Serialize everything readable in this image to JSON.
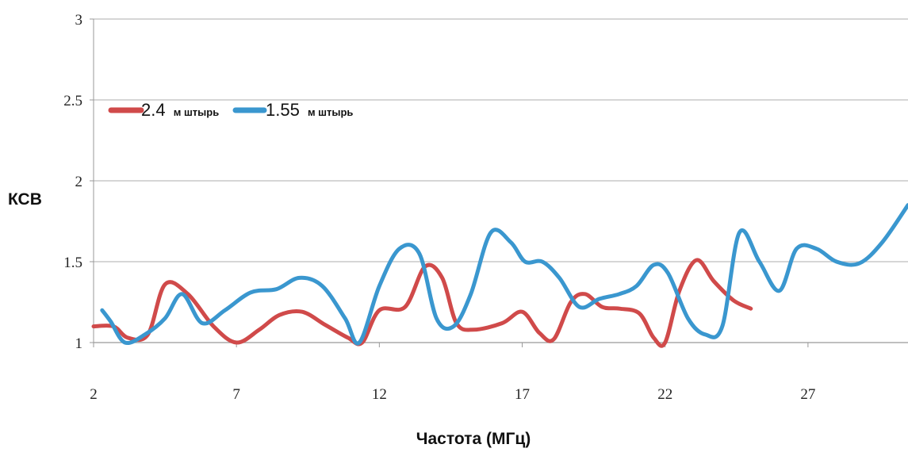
{
  "chart_data": {
    "type": "line",
    "xlabel": "Частота (МГц)",
    "ylabel": "КСВ",
    "xlim": [
      2,
      30.5
    ],
    "ylim": [
      1,
      3
    ],
    "x_ticks": [
      "2",
      "7",
      "12",
      "17",
      "22",
      "27"
    ],
    "y_ticks": [
      "1",
      "1.5",
      "2",
      "2.5",
      "3"
    ],
    "grid": "horizontal",
    "legend_position": "top-left",
    "series": [
      {
        "name_number": "2.4",
        "name_unit": "м штырь",
        "color": "#d04a4a",
        "x": [
          2.0,
          2.7,
          3.2,
          3.9,
          4.5,
          5.3,
          6.2,
          7.0,
          7.8,
          8.5,
          9.3,
          10.1,
          10.9,
          11.4,
          12.0,
          12.9,
          13.6,
          14.2,
          14.7,
          15.3,
          16.3,
          17.0,
          17.6,
          18.1,
          18.7,
          19.2,
          19.8,
          20.4,
          21.1,
          21.6,
          22.0,
          22.5,
          23.1,
          23.7,
          24.4,
          25.0
        ],
        "y": [
          1.1,
          1.1,
          1.03,
          1.05,
          1.36,
          1.3,
          1.1,
          1.0,
          1.08,
          1.17,
          1.19,
          1.11,
          1.03,
          1.0,
          1.2,
          1.22,
          1.47,
          1.4,
          1.12,
          1.08,
          1.12,
          1.19,
          1.06,
          1.02,
          1.25,
          1.3,
          1.22,
          1.21,
          1.18,
          1.03,
          1.0,
          1.32,
          1.51,
          1.38,
          1.26,
          1.21
        ]
      },
      {
        "name_number": "1.55",
        "name_unit": "м штырь",
        "color": "#3a97cf",
        "x": [
          2.3,
          2.6,
          3.1,
          3.8,
          4.5,
          5.1,
          5.8,
          6.6,
          7.5,
          8.4,
          9.2,
          10.0,
          10.8,
          11.3,
          12.0,
          12.7,
          13.4,
          14.0,
          14.6,
          15.2,
          15.9,
          16.6,
          17.1,
          17.7,
          18.3,
          19.0,
          19.7,
          20.4,
          21.0,
          21.6,
          22.1,
          22.8,
          23.4,
          24.0,
          24.6,
          25.3,
          26.0,
          26.6,
          27.3,
          28.0,
          28.8,
          29.6,
          30.5
        ],
        "y": [
          1.2,
          1.13,
          1.0,
          1.05,
          1.15,
          1.3,
          1.12,
          1.2,
          1.31,
          1.33,
          1.4,
          1.35,
          1.15,
          1.0,
          1.35,
          1.58,
          1.55,
          1.15,
          1.1,
          1.3,
          1.68,
          1.62,
          1.5,
          1.5,
          1.4,
          1.22,
          1.27,
          1.3,
          1.35,
          1.48,
          1.43,
          1.15,
          1.05,
          1.1,
          1.68,
          1.5,
          1.32,
          1.58,
          1.58,
          1.5,
          1.49,
          1.62,
          1.85
        ]
      }
    ]
  }
}
